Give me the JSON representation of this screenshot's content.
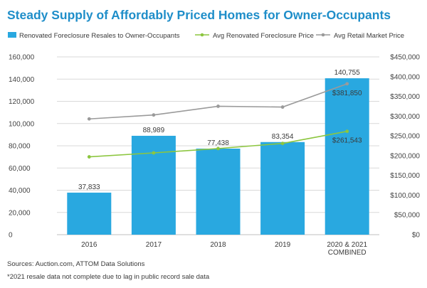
{
  "chart_data": {
    "type": "bar",
    "title": "Steady Supply of Affordably Priced Homes for Owner-Occupants",
    "categories": [
      [
        "2016"
      ],
      [
        "2017"
      ],
      [
        "2018"
      ],
      [
        "2019"
      ],
      [
        "2020 & 2021",
        "COMBINED"
      ]
    ],
    "bar_series": {
      "name": "Renovated Foreclosure Resales to Owner-Occupants",
      "values": [
        37833,
        88989,
        77438,
        83354,
        140755
      ],
      "value_labels": [
        "37,833",
        "88,989",
        "77,438",
        "83,354",
        "140,755"
      ],
      "color": "#29a8e0",
      "axis": "left"
    },
    "line_series": [
      {
        "name": "Avg Renovated Foreclosure Price",
        "values": [
          197000,
          207000,
          218000,
          231000,
          261543
        ],
        "color": "#8cc63f",
        "axis": "right",
        "end_label": "$261,543"
      },
      {
        "name": "Avg Retail Market Price",
        "values": [
          293000,
          303000,
          325000,
          323000,
          381850
        ],
        "color": "#9a9a9a",
        "axis": "right",
        "end_label": "$381,850"
      }
    ],
    "y_left": {
      "min": 0,
      "max": 160000,
      "ticks": [
        0,
        20000,
        40000,
        60000,
        80000,
        100000,
        120000,
        140000,
        160000
      ],
      "tick_labels": [
        "0",
        "20,000",
        "40,000",
        "60,000",
        "80,000",
        "100,000",
        "120,000",
        "140,000",
        "160,000"
      ]
    },
    "y_right": {
      "min": 0,
      "max": 450000,
      "ticks": [
        0,
        50000,
        100000,
        150000,
        200000,
        250000,
        300000,
        350000,
        400000,
        450000
      ],
      "tick_labels": [
        "$0",
        "$50,000",
        "$100,000",
        "$150,000",
        "$200,000",
        "$250,000",
        "$300,000",
        "$350,000",
        "$400,000",
        "$450,000"
      ]
    },
    "grid": true,
    "legend_position": "top"
  },
  "footnotes": {
    "sources": "Sources: Auction.com, ATTOM Data Solutions",
    "note": "*2021 resale data not complete due to lag in public record sale data"
  },
  "colors": {
    "title": "#1f8ec9",
    "grid": "#d9d9d9",
    "axis": "#bfbfbf"
  }
}
